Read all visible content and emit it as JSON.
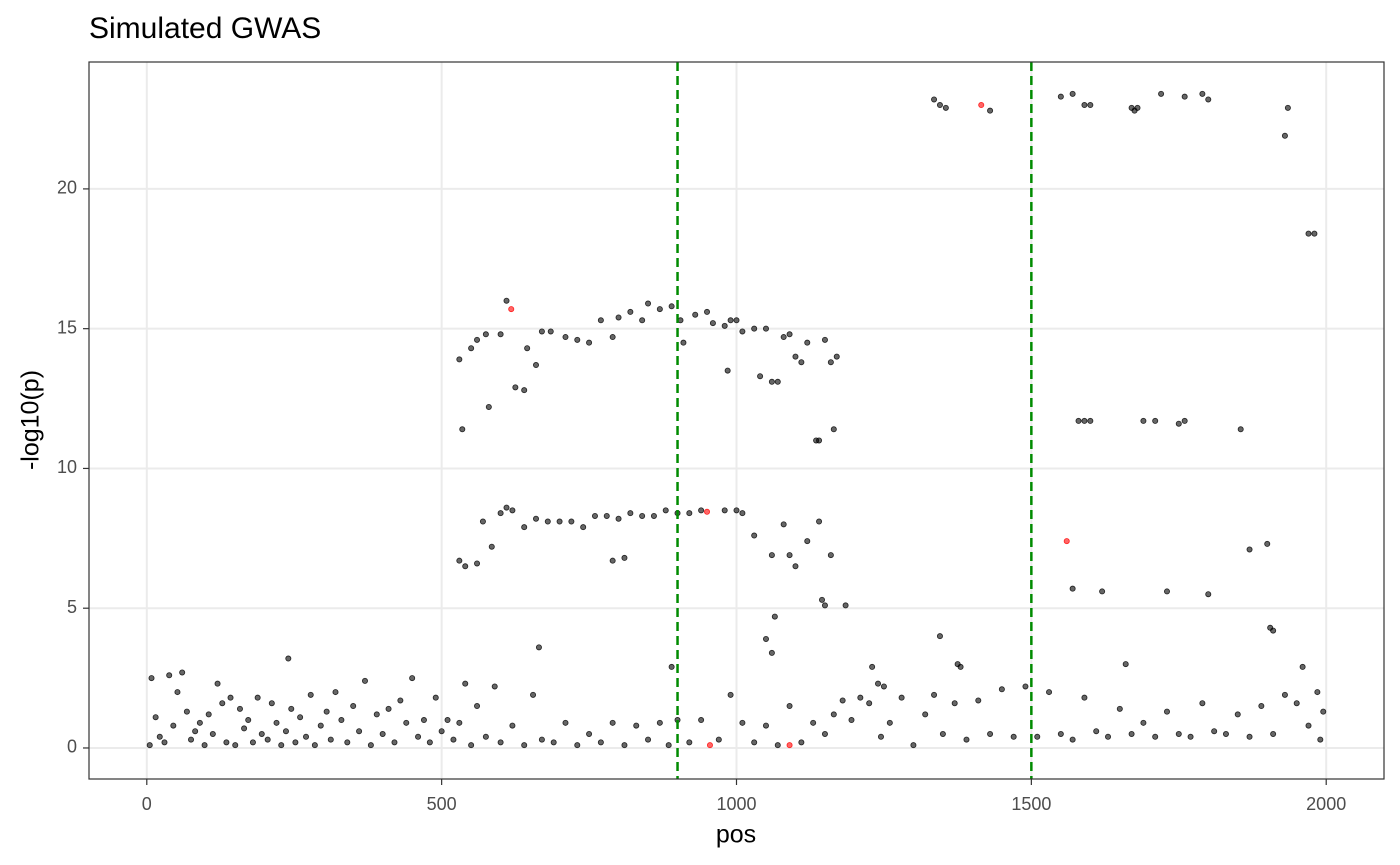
{
  "chart_data": {
    "type": "scatter",
    "title": "Simulated GWAS",
    "x_label": "pos",
    "y_label": "-log10(p)",
    "xlim": [
      -98,
      2098
    ],
    "ylim": [
      -1.11,
      24.54
    ],
    "xticks": [
      0,
      500,
      1000,
      1500,
      2000
    ],
    "yticks": [
      0,
      5,
      10,
      15,
      20
    ],
    "grid": true,
    "vlines": [
      900,
      1500
    ],
    "vline_color": "#008b00",
    "series": [
      {
        "color": "#000000",
        "x": [
          530,
          535,
          550,
          560,
          575,
          580,
          600,
          610,
          625,
          640,
          645,
          660,
          670,
          685,
          710,
          730,
          750,
          770,
          790,
          800,
          820,
          840,
          850,
          870,
          890,
          905,
          910,
          930,
          950,
          960,
          980,
          985,
          990,
          1000,
          1010,
          1030,
          1040,
          1050,
          1060,
          1070,
          1080,
          1090,
          1100,
          1110,
          1120,
          1135,
          1140,
          1150,
          1160,
          1165,
          1170,
          530,
          540,
          560,
          570,
          585,
          600,
          610,
          620,
          640,
          660,
          680,
          700,
          720,
          740,
          760,
          780,
          790,
          800,
          810,
          820,
          840,
          860,
          880,
          900,
          920,
          940,
          980,
          1000,
          1010,
          1030,
          1060,
          1080,
          1090,
          1100,
          1120,
          1140,
          1150,
          1160,
          1185,
          1065,
          1060,
          1050,
          1145,
          1335,
          1345,
          1355,
          1430,
          1550,
          1570,
          1590,
          1600,
          1670,
          1675,
          1680,
          1720,
          1760,
          1790,
          1800,
          1930,
          1935,
          1970,
          1980,
          1580,
          1590,
          1600,
          1690,
          1710,
          1750,
          1760,
          1855,
          1870,
          1900,
          1905,
          1910,
          1570,
          1620,
          1730,
          1800,
          1345,
          1660,
          1960,
          1230,
          1250,
          1240,
          240,
          665,
          1375,
          1380,
          890,
          5,
          8,
          15,
          22,
          30,
          38,
          45,
          52,
          60,
          68,
          75,
          82,
          90,
          98,
          105,
          112,
          120,
          128,
          135,
          142,
          150,
          158,
          165,
          172,
          180,
          188,
          195,
          205,
          212,
          220,
          228,
          236,
          245,
          252,
          260,
          270,
          278,
          285,
          295,
          305,
          312,
          320,
          330,
          340,
          350,
          360,
          370,
          380,
          390,
          400,
          410,
          420,
          430,
          440,
          450,
          460,
          470,
          480,
          490,
          500,
          510,
          520,
          530,
          540,
          550,
          560,
          575,
          590,
          600,
          620,
          640,
          655,
          670,
          690,
          710,
          730,
          750,
          770,
          790,
          810,
          830,
          850,
          870,
          885,
          900,
          920,
          940,
          970,
          990,
          1010,
          1030,
          1050,
          1070,
          1090,
          1110,
          1130,
          1150,
          1165,
          1180,
          1195,
          1210,
          1225,
          1245,
          1260,
          1280,
          1300,
          1320,
          1335,
          1350,
          1370,
          1390,
          1410,
          1430,
          1450,
          1470,
          1490,
          1510,
          1530,
          1550,
          1570,
          1590,
          1610,
          1630,
          1650,
          1670,
          1690,
          1710,
          1730,
          1750,
          1770,
          1790,
          1810,
          1830,
          1850,
          1870,
          1890,
          1910,
          1930,
          1950,
          1970,
          1985,
          1995,
          1990
        ],
        "values": [
          13.9,
          11.4,
          14.3,
          14.6,
          14.8,
          12.2,
          14.8,
          16.0,
          12.9,
          12.8,
          14.3,
          13.7,
          14.9,
          14.9,
          14.7,
          14.6,
          14.5,
          15.3,
          14.7,
          15.4,
          15.6,
          15.3,
          15.9,
          15.7,
          15.8,
          15.3,
          14.5,
          15.5,
          15.6,
          15.2,
          15.1,
          13.5,
          15.3,
          15.3,
          14.9,
          15.0,
          13.3,
          15.0,
          13.1,
          13.1,
          14.7,
          14.8,
          14.0,
          13.8,
          14.5,
          11.0,
          11.0,
          14.6,
          13.8,
          11.4,
          14.0,
          6.7,
          6.5,
          6.6,
          8.1,
          7.2,
          8.4,
          8.6,
          8.5,
          7.9,
          8.2,
          8.1,
          8.1,
          8.1,
          7.9,
          8.3,
          8.3,
          6.7,
          8.2,
          6.8,
          8.4,
          8.3,
          8.3,
          8.5,
          8.4,
          8.4,
          8.5,
          8.5,
          8.5,
          8.4,
          7.6,
          6.9,
          8.0,
          6.9,
          6.5,
          7.4,
          8.1,
          5.1,
          6.9,
          5.1,
          4.7,
          3.4,
          3.9,
          5.3,
          23.2,
          23.0,
          22.9,
          22.8,
          23.3,
          23.4,
          23.0,
          23.0,
          22.9,
          22.8,
          22.9,
          23.4,
          23.3,
          23.4,
          23.2,
          21.9,
          22.9,
          18.4,
          18.4,
          11.7,
          11.7,
          11.7,
          11.7,
          11.7,
          11.6,
          11.7,
          11.4,
          7.1,
          7.3,
          4.3,
          4.2,
          5.7,
          5.6,
          5.6,
          5.5,
          4.0,
          3.0,
          2.9,
          2.9,
          2.2,
          2.3,
          3.2,
          3.6,
          3.0,
          2.9,
          2.9,
          0.1,
          2.5,
          1.1,
          0.4,
          0.2,
          2.6,
          0.8,
          2.0,
          2.7,
          1.3,
          0.3,
          0.6,
          0.9,
          0.1,
          1.2,
          0.5,
          2.3,
          1.6,
          0.2,
          1.8,
          0.1,
          1.4,
          0.7,
          1.0,
          0.2,
          1.8,
          0.5,
          0.3,
          1.6,
          0.9,
          0.1,
          0.6,
          1.4,
          0.2,
          1.1,
          0.4,
          1.9,
          0.1,
          0.8,
          1.3,
          0.3,
          2.0,
          1.0,
          0.2,
          1.5,
          0.6,
          2.4,
          0.1,
          1.2,
          0.5,
          1.4,
          0.2,
          1.7,
          0.9,
          2.5,
          0.4,
          1.0,
          0.2,
          1.8,
          0.6,
          1.0,
          0.3,
          0.9,
          2.3,
          0.1,
          1.5,
          0.4,
          2.2,
          0.2,
          0.8,
          0.1,
          1.9,
          0.3,
          0.2,
          0.9,
          0.1,
          0.5,
          0.2,
          0.9,
          0.1,
          0.8,
          0.3,
          0.9,
          0.1,
          1.0,
          0.2,
          1.0,
          0.3,
          1.9,
          0.9,
          0.2,
          0.8,
          0.1,
          1.5,
          0.2,
          0.9,
          0.5,
          1.2,
          1.7,
          1.0,
          1.8,
          1.6,
          0.4,
          0.9,
          1.8,
          0.1,
          1.2,
          1.9,
          0.5,
          1.6,
          0.3,
          1.7,
          0.5,
          2.1,
          0.4,
          2.2,
          0.4,
          2.0,
          0.5,
          0.3,
          1.8,
          0.6,
          0.4,
          1.4,
          0.5,
          0.9,
          0.4,
          1.3,
          0.5,
          0.4,
          1.6,
          0.6,
          0.5,
          1.2,
          0.4,
          1.5,
          0.5,
          1.9,
          1.6,
          0.8,
          2.0,
          1.3,
          0.3
        ]
      },
      {
        "color": "#ff0000",
        "x": [
          618,
          950,
          1415,
          1560,
          955,
          1090
        ],
        "values": [
          15.7,
          8.45,
          23.0,
          7.4,
          0.1,
          0.1
        ]
      }
    ]
  }
}
